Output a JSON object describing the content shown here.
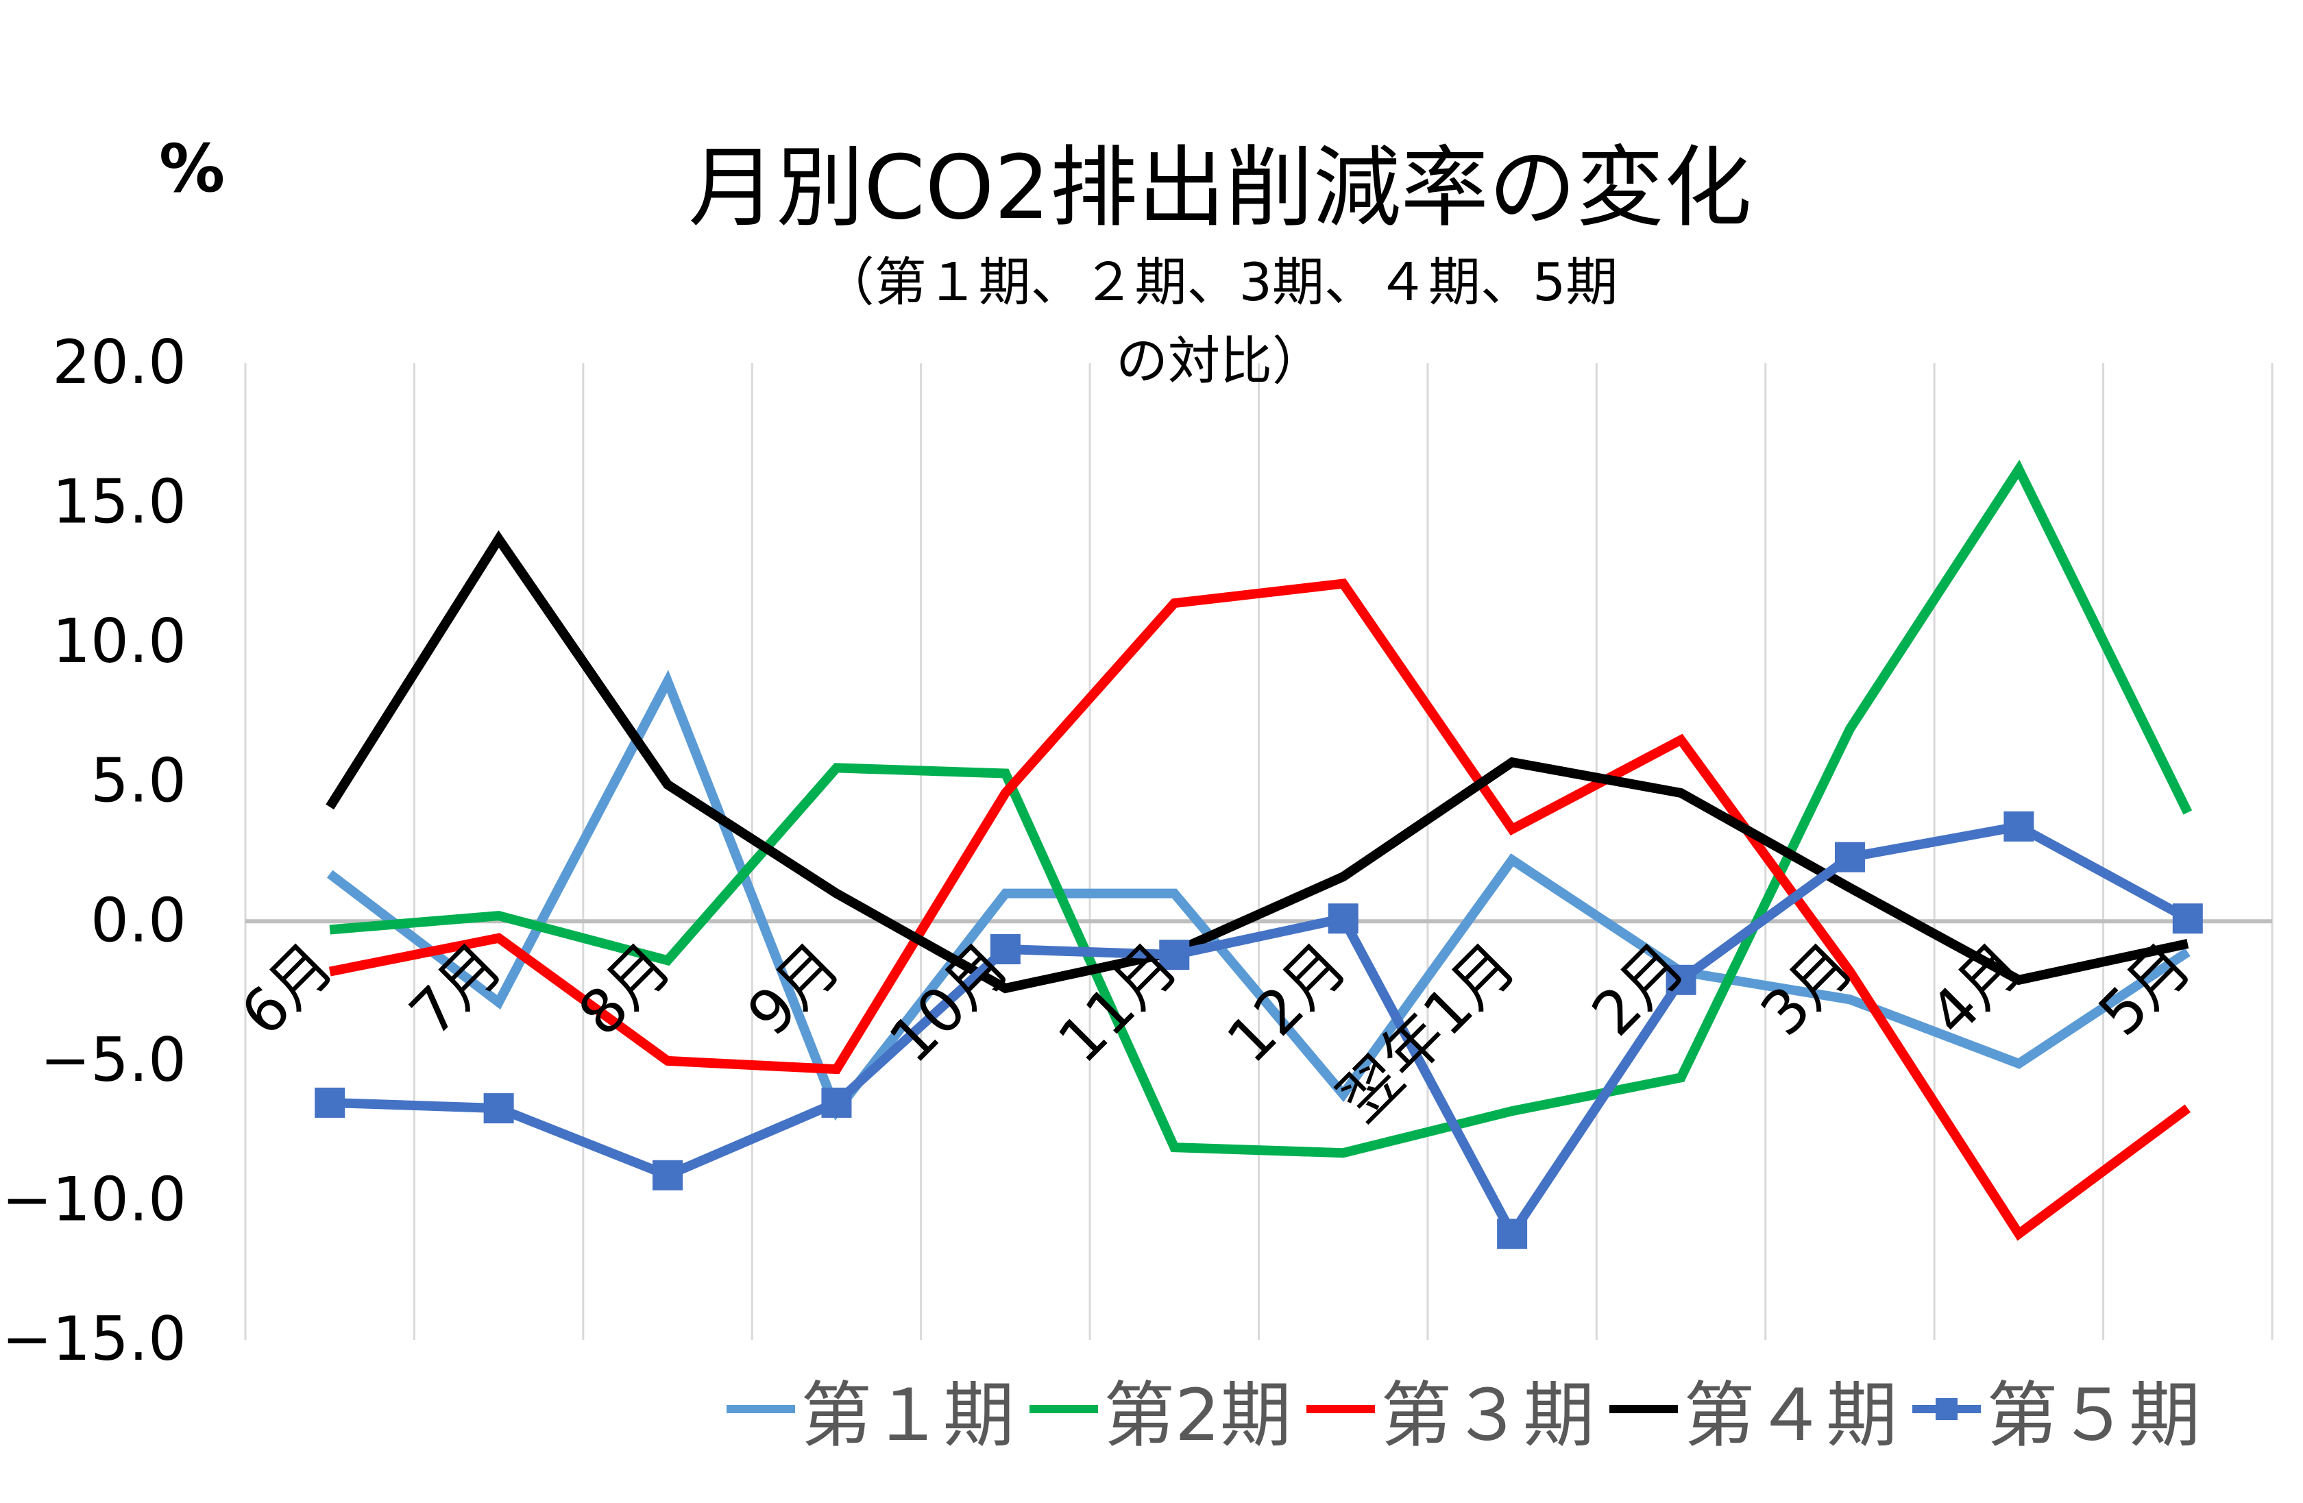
{
  "chart_data": {
    "type": "line",
    "title": "月別CO2排出削減率の変化",
    "subtitle_lines": [
      "（第１期、２期、3期、４期、5期",
      "の対比）"
    ],
    "ylabel": "%",
    "xlabel": "",
    "categories": [
      "6月",
      "7月",
      "8月",
      "9月",
      "10月",
      "11月",
      "12月",
      "翌年1月",
      "2月",
      "3月",
      "4月",
      "5月"
    ],
    "ylim": [
      -15,
      20
    ],
    "ytick_step": 5,
    "ytick_labels": [
      "20.0",
      "15.0",
      "10.0",
      "5.0",
      "0.0",
      "−5.0",
      "−10.0",
      "−15.0"
    ],
    "grid": "vertical",
    "legend_position": "bottom",
    "series": [
      {
        "name": "第１期",
        "color": "#5B9BD5",
        "marker": "none",
        "values": [
          1.7,
          -2.9,
          8.6,
          -6.8,
          1.0,
          1.0,
          -6.2,
          2.2,
          -1.8,
          -2.8,
          -5.1,
          -1.1
        ]
      },
      {
        "name": "第2期",
        "color": "#00B050",
        "marker": "none",
        "values": [
          -0.3,
          0.2,
          -1.4,
          5.5,
          5.3,
          -8.1,
          -8.3,
          -6.8,
          -5.6,
          6.9,
          16.2,
          3.9
        ]
      },
      {
        "name": "第３期",
        "color": "#FF0000",
        "marker": "none",
        "values": [
          -1.8,
          -0.6,
          -5.0,
          -5.3,
          4.6,
          11.4,
          12.1,
          3.3,
          6.5,
          -1.8,
          -11.2,
          -6.7
        ]
      },
      {
        "name": "第４期",
        "color": "#000000",
        "marker": "none",
        "values": [
          4.1,
          13.7,
          4.9,
          1.0,
          -2.4,
          -1.1,
          1.6,
          5.7,
          4.6,
          1.2,
          -2.1,
          -0.8
        ]
      },
      {
        "name": "第５期",
        "color": "#4472C4",
        "marker": "square",
        "values": [
          -6.5,
          -6.7,
          -9.1,
          -6.5,
          -1.0,
          -1.2,
          0.1,
          -11.2,
          -2.1,
          2.3,
          3.4,
          0.1
        ]
      }
    ]
  }
}
